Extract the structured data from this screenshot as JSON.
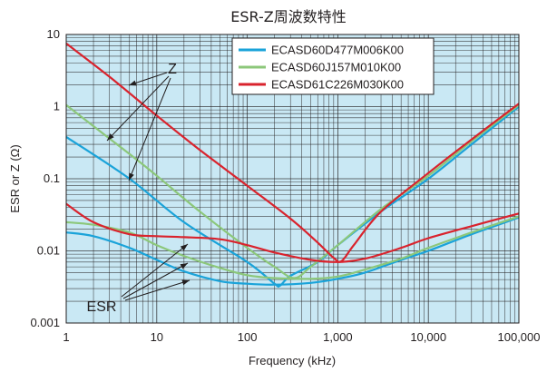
{
  "chart_data": {
    "type": "line",
    "title": "ESR-Z周波数特性",
    "xlabel": "Frequency (kHz)",
    "ylabel": "ESR or Z (Ω)",
    "x_scale": "log",
    "y_scale": "log",
    "xlim": [
      1,
      100000
    ],
    "ylim": [
      0.001,
      10
    ],
    "x_ticks": [
      "1",
      "10",
      "100",
      "1,000",
      "10,000",
      "100,000"
    ],
    "y_ticks": [
      "10",
      "1",
      "0.1",
      "0.01",
      "0.001"
    ],
    "grid": true,
    "legend_position": "top-right",
    "colors": {
      "background": "#c9e8f4",
      "grid": "#231f20",
      "ECASD60D477M006K00": "#1aa3d9",
      "ECASD60J157M010K00": "#8cc77a",
      "ECASD61C226M030K00": "#d9232d"
    },
    "annotations": [
      "Z",
      "ESR"
    ],
    "series": [
      {
        "name": "ECASD60D477M006K00",
        "color": "#1aa3d9",
        "z": [
          [
            1,
            0.38
          ],
          [
            5,
            0.1
          ],
          [
            20,
            0.025
          ],
          [
            100,
            0.007
          ],
          [
            200,
            0.0035
          ],
          [
            230,
            0.0033
          ],
          [
            300,
            0.0045
          ],
          [
            600,
            0.007
          ],
          [
            1000,
            0.012
          ],
          [
            3000,
            0.035
          ],
          [
            10000,
            0.1
          ],
          [
            30000,
            0.3
          ],
          [
            100000,
            1.0
          ]
        ],
        "esr": [
          [
            1,
            0.018
          ],
          [
            2,
            0.016
          ],
          [
            5,
            0.011
          ],
          [
            10,
            0.0075
          ],
          [
            20,
            0.0052
          ],
          [
            50,
            0.0038
          ],
          [
            100,
            0.0035
          ],
          [
            200,
            0.0034
          ],
          [
            500,
            0.0036
          ],
          [
            1000,
            0.0041
          ],
          [
            2000,
            0.005
          ],
          [
            5000,
            0.0075
          ],
          [
            10000,
            0.01
          ],
          [
            30000,
            0.017
          ],
          [
            100000,
            0.029
          ]
        ]
      },
      {
        "name": "ECASD60J157M010K00",
        "color": "#8cc77a",
        "z": [
          [
            1,
            1.05
          ],
          [
            5,
            0.22
          ],
          [
            10,
            0.11
          ],
          [
            30,
            0.035
          ],
          [
            100,
            0.011
          ],
          [
            200,
            0.006
          ],
          [
            330,
            0.0042
          ],
          [
            500,
            0.006
          ],
          [
            1000,
            0.012
          ],
          [
            3000,
            0.038
          ],
          [
            10000,
            0.11
          ],
          [
            30000,
            0.33
          ],
          [
            100000,
            1.05
          ]
        ],
        "esr": [
          [
            1,
            0.025
          ],
          [
            2,
            0.023
          ],
          [
            5,
            0.018
          ],
          [
            10,
            0.012
          ],
          [
            20,
            0.0085
          ],
          [
            50,
            0.0058
          ],
          [
            100,
            0.0046
          ],
          [
            200,
            0.0042
          ],
          [
            500,
            0.0041
          ],
          [
            1000,
            0.0044
          ],
          [
            2000,
            0.0055
          ],
          [
            5000,
            0.0078
          ],
          [
            10000,
            0.011
          ],
          [
            30000,
            0.018
          ],
          [
            100000,
            0.03
          ]
        ]
      },
      {
        "name": "ECASD61C226M030K00",
        "color": "#d9232d",
        "z": [
          [
            1,
            7.5
          ],
          [
            3,
            2.6
          ],
          [
            10,
            0.75
          ],
          [
            30,
            0.25
          ],
          [
            100,
            0.08
          ],
          [
            300,
            0.028
          ],
          [
            600,
            0.013
          ],
          [
            900,
            0.008
          ],
          [
            1100,
            0.0072
          ],
          [
            1500,
            0.012
          ],
          [
            3000,
            0.035
          ],
          [
            10000,
            0.12
          ],
          [
            30000,
            0.35
          ],
          [
            100000,
            1.1
          ]
        ],
        "esr": [
          [
            1,
            0.045
          ],
          [
            2,
            0.025
          ],
          [
            5,
            0.017
          ],
          [
            10,
            0.016
          ],
          [
            20,
            0.0155
          ],
          [
            50,
            0.0145
          ],
          [
            100,
            0.012
          ],
          [
            200,
            0.0095
          ],
          [
            500,
            0.0075
          ],
          [
            1000,
            0.007
          ],
          [
            2000,
            0.0078
          ],
          [
            5000,
            0.011
          ],
          [
            10000,
            0.015
          ],
          [
            30000,
            0.022
          ],
          [
            100000,
            0.033
          ]
        ]
      }
    ]
  }
}
